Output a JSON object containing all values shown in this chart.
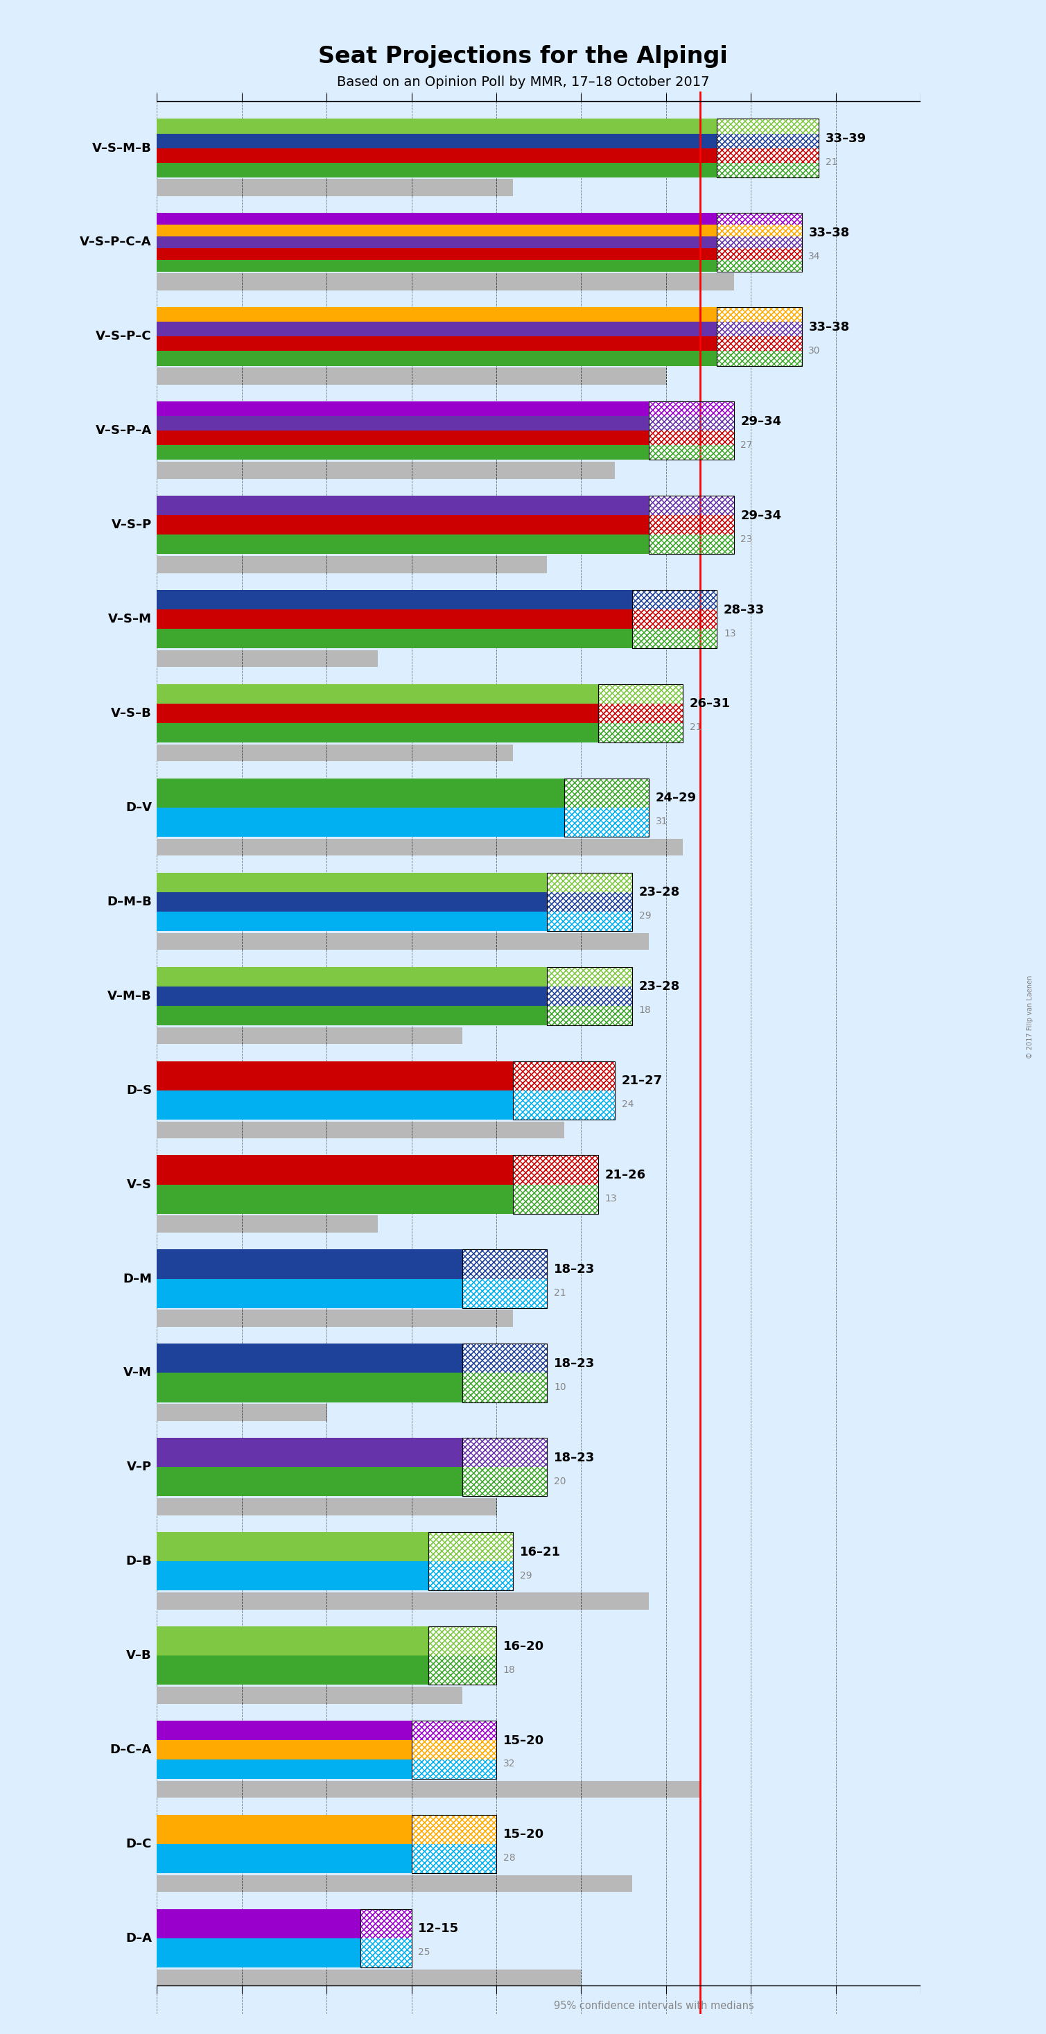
{
  "title": "Seat Projections for the Alpingi",
  "subtitle": "Based on an Opinion Poll by MMR, 17–18 October 2017",
  "copyright": "© 2017 Filip van Laenen",
  "background_color": "#ddeeff",
  "coalitions": [
    {
      "name": "V–S–M–B",
      "parties": [
        "V",
        "S",
        "M",
        "B"
      ],
      "colors": [
        "#3ea72d",
        "#cc0000",
        "#1e4299",
        "#7ec843"
      ],
      "min": 33,
      "max": 39,
      "median": 21,
      "ci_bar": 21
    },
    {
      "name": "V–S–P–C–A",
      "parties": [
        "V",
        "S",
        "P",
        "C",
        "A"
      ],
      "colors": [
        "#3ea72d",
        "#cc0000",
        "#6633aa",
        "#ffaa00",
        "#9900cc"
      ],
      "min": 33,
      "max": 38,
      "median": 34,
      "ci_bar": 34
    },
    {
      "name": "V–S–P–C",
      "parties": [
        "V",
        "S",
        "P",
        "C"
      ],
      "colors": [
        "#3ea72d",
        "#cc0000",
        "#6633aa",
        "#ffaa00"
      ],
      "min": 33,
      "max": 38,
      "median": 30,
      "ci_bar": 30
    },
    {
      "name": "V–S–P–A",
      "parties": [
        "V",
        "S",
        "P",
        "A"
      ],
      "colors": [
        "#3ea72d",
        "#cc0000",
        "#6633aa",
        "#9900cc"
      ],
      "min": 29,
      "max": 34,
      "median": 27,
      "ci_bar": 27
    },
    {
      "name": "V–S–P",
      "parties": [
        "V",
        "S",
        "P"
      ],
      "colors": [
        "#3ea72d",
        "#cc0000",
        "#6633aa"
      ],
      "min": 29,
      "max": 34,
      "median": 23,
      "ci_bar": 23
    },
    {
      "name": "V–S–M",
      "parties": [
        "V",
        "S",
        "M"
      ],
      "colors": [
        "#3ea72d",
        "#cc0000",
        "#1e4299"
      ],
      "min": 28,
      "max": 33,
      "median": 13,
      "ci_bar": 13
    },
    {
      "name": "V–S–B",
      "parties": [
        "V",
        "S",
        "B"
      ],
      "colors": [
        "#3ea72d",
        "#cc0000",
        "#7ec843"
      ],
      "min": 26,
      "max": 31,
      "median": 21,
      "ci_bar": 21
    },
    {
      "name": "D–V",
      "parties": [
        "D",
        "V"
      ],
      "colors": [
        "#00b0f0",
        "#3ea72d"
      ],
      "min": 24,
      "max": 29,
      "median": 31,
      "ci_bar": 31
    },
    {
      "name": "D–M–B",
      "parties": [
        "D",
        "M",
        "B"
      ],
      "colors": [
        "#00b0f0",
        "#1e4299",
        "#7ec843"
      ],
      "min": 23,
      "max": 28,
      "median": 29,
      "ci_bar": 29
    },
    {
      "name": "V–M–B",
      "parties": [
        "V",
        "M",
        "B"
      ],
      "colors": [
        "#3ea72d",
        "#1e4299",
        "#7ec843"
      ],
      "min": 23,
      "max": 28,
      "median": 18,
      "ci_bar": 18
    },
    {
      "name": "D–S",
      "parties": [
        "D",
        "S"
      ],
      "colors": [
        "#00b0f0",
        "#cc0000"
      ],
      "min": 21,
      "max": 27,
      "median": 24,
      "ci_bar": 24
    },
    {
      "name": "V–S",
      "parties": [
        "V",
        "S"
      ],
      "colors": [
        "#3ea72d",
        "#cc0000"
      ],
      "min": 21,
      "max": 26,
      "median": 13,
      "ci_bar": 13
    },
    {
      "name": "D–M",
      "parties": [
        "D",
        "M"
      ],
      "colors": [
        "#00b0f0",
        "#1e4299"
      ],
      "min": 18,
      "max": 23,
      "median": 21,
      "ci_bar": 21
    },
    {
      "name": "V–M",
      "parties": [
        "V",
        "M"
      ],
      "colors": [
        "#3ea72d",
        "#1e4299"
      ],
      "min": 18,
      "max": 23,
      "median": 10,
      "ci_bar": 10
    },
    {
      "name": "V–P",
      "parties": [
        "V",
        "P"
      ],
      "colors": [
        "#3ea72d",
        "#6633aa"
      ],
      "min": 18,
      "max": 23,
      "median": 20,
      "ci_bar": 20
    },
    {
      "name": "D–B",
      "parties": [
        "D",
        "B"
      ],
      "colors": [
        "#00b0f0",
        "#7ec843"
      ],
      "min": 16,
      "max": 21,
      "median": 29,
      "ci_bar": 29
    },
    {
      "name": "V–B",
      "parties": [
        "V",
        "B"
      ],
      "colors": [
        "#3ea72d",
        "#7ec843"
      ],
      "min": 16,
      "max": 20,
      "median": 18,
      "ci_bar": 18
    },
    {
      "name": "D–C–A",
      "parties": [
        "D",
        "C",
        "A"
      ],
      "colors": [
        "#00b0f0",
        "#ffaa00",
        "#9900cc"
      ],
      "min": 15,
      "max": 20,
      "median": 32,
      "ci_bar": 32
    },
    {
      "name": "D–C",
      "parties": [
        "D",
        "C"
      ],
      "colors": [
        "#00b0f0",
        "#ffaa00"
      ],
      "min": 15,
      "max": 20,
      "median": 28,
      "ci_bar": 28
    },
    {
      "name": "D–A",
      "parties": [
        "D",
        "A"
      ],
      "colors": [
        "#00b0f0",
        "#9900cc"
      ],
      "min": 12,
      "max": 15,
      "median": 25,
      "ci_bar": 25
    }
  ],
  "majority_line": 32,
  "x_max": 45,
  "x_ticks": [
    0,
    5,
    10,
    15,
    20,
    25,
    30,
    35,
    40,
    45
  ],
  "hatched_colors": {
    "V": "#3ea72d",
    "S": "#cc0000",
    "M": "#1e4299",
    "B": "#7ec843",
    "P": "#6633aa",
    "C": "#ffaa00",
    "A": "#9900cc",
    "D": "#00b0f0"
  }
}
